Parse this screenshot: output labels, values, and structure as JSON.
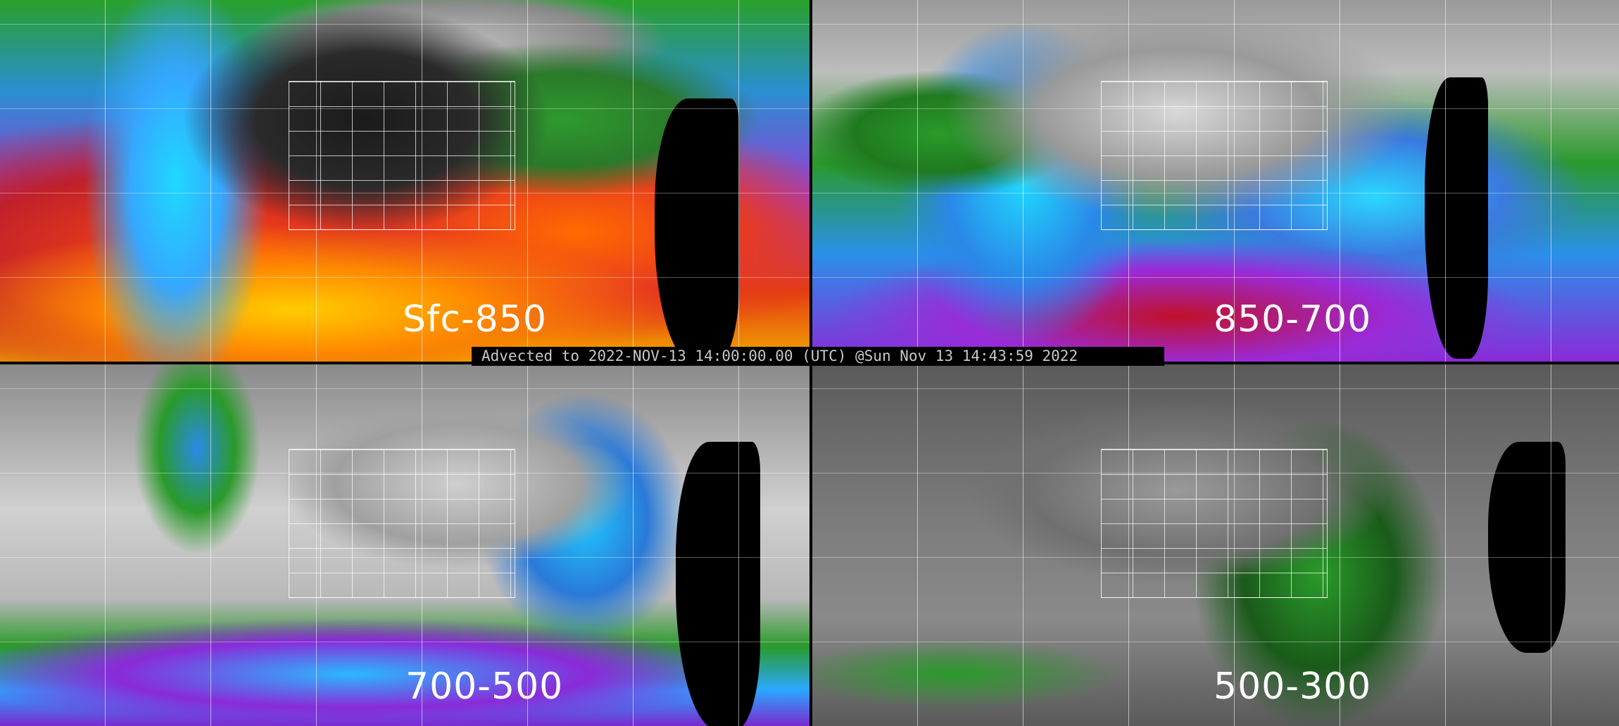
{
  "panels": [
    {
      "label": "Sfc-850",
      "colormap": "rainbow-moisture"
    },
    {
      "label": "850-700",
      "colormap": "rainbow-moisture"
    },
    {
      "label": "700-500",
      "colormap": "rainbow-moisture"
    },
    {
      "label": "500-300",
      "colormap": "rainbow-moisture"
    }
  ],
  "caption": "Advected to 2022-NOV-13 14:00:00.00 (UTC) @Sun Nov 13 14:43:59 2022",
  "colors": {
    "background": "#000000",
    "caption_text": "#c8c8c8",
    "label_text": "#ffffff",
    "grid": "#ffffff"
  }
}
